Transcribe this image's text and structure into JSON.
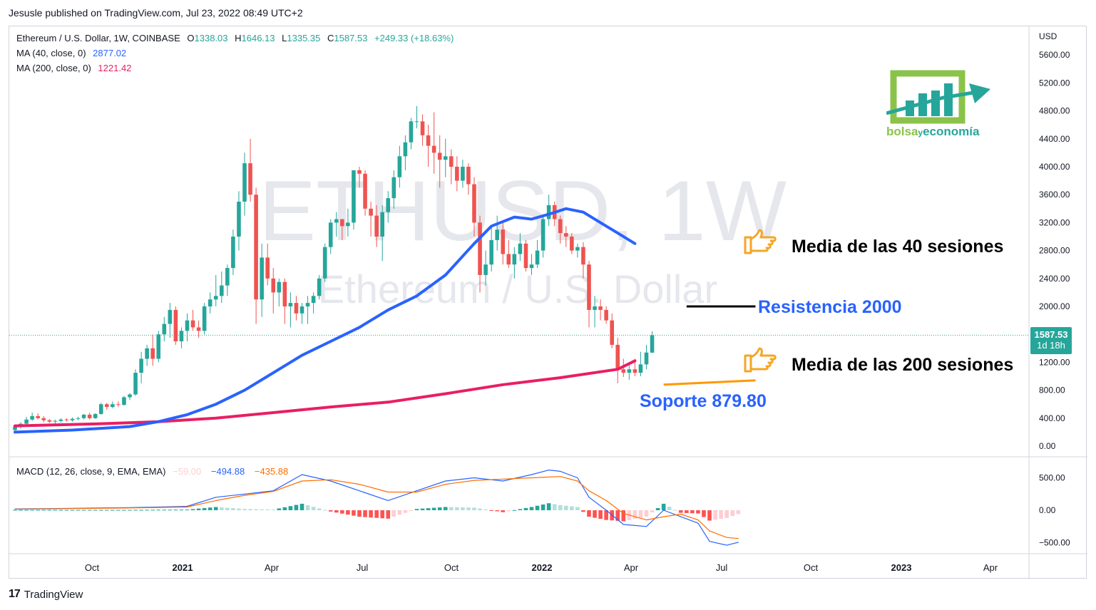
{
  "publisher": "Jesusle published on TradingView.com, Jul 23, 2022 08:49 UTC+2",
  "legend": {
    "symbol": "Ethereum / U.S. Dollar, 1W, COINBASE",
    "o_label": "O",
    "o": "1338.03",
    "h_label": "H",
    "h": "1646.13",
    "l_label": "L",
    "l": "1335.35",
    "c_label": "C",
    "c": "1587.53",
    "change": "+249.33 (+18.63%)",
    "ma40_label": "MA (40, close, 0)",
    "ma40_value": "2877.02",
    "ma200_label": "MA (200, close, 0)",
    "ma200_value": "1221.42"
  },
  "watermark": {
    "symbol": "ETHUSD, 1W",
    "name": "Ethereum / U.S. Dollar"
  },
  "price_axis": {
    "currency": "USD",
    "ticks": [
      "5600.00",
      "5200.00",
      "4800.00",
      "4400.00",
      "4000.00",
      "3600.00",
      "3200.00",
      "2800.00",
      "2400.00",
      "2000.00",
      "1600.00",
      "1200.00",
      "800.00",
      "400.00",
      "0.00"
    ]
  },
  "price_label": {
    "value": "1587.53",
    "countdown": "1d 18h"
  },
  "macd": {
    "label": "MACD (12, 26, close, 9, EMA, EMA)",
    "hist": "−59.00",
    "macd": "−494.88",
    "signal": "−435.88",
    "ticks": [
      "500.00",
      "0.00",
      "−500.00"
    ]
  },
  "time_axis": [
    "Oct",
    "2021",
    "Apr",
    "Jul",
    "Oct",
    "2022",
    "Apr",
    "Jul",
    "Oct",
    "2023",
    "Apr"
  ],
  "annotations": {
    "ma40": "Media de las 40 sesiones",
    "resistance": "Resistencia 2000",
    "ma200": "Media de las 200 sesiones",
    "support": "Soporte 879.80"
  },
  "brand": {
    "part1": "bolsa",
    "part2": "y",
    "part3": "economía"
  },
  "footer": {
    "logo_mark": "17",
    "logo_text": "TradingView"
  },
  "colors": {
    "up": "#26a69a",
    "down": "#ef5350",
    "ma40": "#2962ff",
    "ma200": "#e91e63",
    "macd_line": "#2962ff",
    "signal_line": "#ff6d00",
    "annot_blue": "#2962ff",
    "support_line": "#ff9800",
    "resistance_line": "#000000",
    "brand_green": "#8bc34a",
    "brand_teal": "#26a69a"
  },
  "chart_data": {
    "type": "candlestick",
    "title": "Ethereum / U.S. Dollar, 1W, COINBASE",
    "ylabel": "USD",
    "ylim": [
      0,
      5800
    ],
    "x_start": "2020-07-27",
    "x_step_weeks": 1,
    "candles": [
      [
        230,
        300,
        220,
        280
      ],
      [
        280,
        340,
        250,
        320
      ],
      [
        320,
        420,
        300,
        380
      ],
      [
        380,
        480,
        360,
        430
      ],
      [
        430,
        470,
        380,
        400
      ],
      [
        400,
        430,
        340,
        370
      ],
      [
        370,
        390,
        330,
        350
      ],
      [
        350,
        380,
        320,
        360
      ],
      [
        360,
        400,
        340,
        380
      ],
      [
        380,
        400,
        350,
        370
      ],
      [
        370,
        410,
        350,
        390
      ],
      [
        390,
        420,
        370,
        400
      ],
      [
        400,
        460,
        380,
        450
      ],
      [
        450,
        480,
        380,
        400
      ],
      [
        400,
        470,
        390,
        460
      ],
      [
        460,
        620,
        450,
        600
      ],
      [
        600,
        620,
        520,
        560
      ],
      [
        560,
        640,
        540,
        600
      ],
      [
        600,
        640,
        560,
        590
      ],
      [
        590,
        720,
        580,
        700
      ],
      [
        700,
        760,
        660,
        740
      ],
      [
        740,
        1100,
        720,
        1050
      ],
      [
        1050,
        1350,
        900,
        1250
      ],
      [
        1250,
        1450,
        1150,
        1400
      ],
      [
        1400,
        1600,
        1150,
        1250
      ],
      [
        1250,
        1650,
        1200,
        1600
      ],
      [
        1600,
        1850,
        1500,
        1750
      ],
      [
        1750,
        2050,
        1550,
        1950
      ],
      [
        1950,
        2000,
        1450,
        1500
      ],
      [
        1500,
        1700,
        1400,
        1650
      ],
      [
        1650,
        1900,
        1500,
        1800
      ],
      [
        1800,
        1950,
        1650,
        1700
      ],
      [
        1700,
        1800,
        1550,
        1650
      ],
      [
        1650,
        2050,
        1600,
        2000
      ],
      [
        2000,
        2200,
        1900,
        2100
      ],
      [
        2100,
        2450,
        2000,
        2150
      ],
      [
        2150,
        2500,
        2050,
        2300
      ],
      [
        2300,
        2600,
        2150,
        2550
      ],
      [
        2550,
        3100,
        2450,
        3000
      ],
      [
        3000,
        3650,
        2800,
        3500
      ],
      [
        3500,
        4200,
        3300,
        4050
      ],
      [
        4050,
        4400,
        3500,
        3600
      ],
      [
        3600,
        3700,
        1750,
        2100
      ],
      [
        2100,
        2900,
        1850,
        2700
      ],
      [
        2700,
        2900,
        2300,
        2400
      ],
      [
        2400,
        2550,
        1900,
        2200
      ],
      [
        2200,
        2400,
        2000,
        2350
      ],
      [
        2350,
        2400,
        1750,
        2000
      ],
      [
        2000,
        2200,
        1700,
        2050
      ],
      [
        2050,
        2150,
        1800,
        1900
      ],
      [
        1900,
        2050,
        1750,
        2000
      ],
      [
        2000,
        2150,
        1750,
        2050
      ],
      [
        2050,
        2200,
        1900,
        2150
      ],
      [
        2150,
        2450,
        2100,
        2400
      ],
      [
        2400,
        2900,
        2350,
        2850
      ],
      [
        2850,
        3250,
        2750,
        3200
      ],
      [
        3200,
        3350,
        3000,
        3250
      ],
      [
        3250,
        3250,
        2950,
        3150
      ],
      [
        3150,
        3400,
        3000,
        3200
      ],
      [
        3200,
        3900,
        3100,
        3950
      ],
      [
        3950,
        4000,
        3700,
        3900
      ],
      [
        3900,
        3950,
        3300,
        3400
      ],
      [
        3400,
        3500,
        3000,
        3300
      ],
      [
        3300,
        3450,
        2850,
        3000
      ],
      [
        3000,
        3450,
        2650,
        3350
      ],
      [
        3350,
        3650,
        3200,
        3550
      ],
      [
        3550,
        3950,
        3400,
        3850
      ],
      [
        3850,
        4300,
        3700,
        4150
      ],
      [
        4150,
        4450,
        3950,
        4350
      ],
      [
        4350,
        4700,
        4250,
        4650
      ],
      [
        4650,
        4870,
        4550,
        4650
      ],
      [
        4650,
        4750,
        4300,
        4450
      ],
      [
        4450,
        4600,
        4000,
        4300
      ],
      [
        4300,
        4780,
        3900,
        4200
      ],
      [
        4200,
        4450,
        3700,
        4100
      ],
      [
        4100,
        4400,
        3850,
        4150
      ],
      [
        4150,
        4250,
        3750,
        4000
      ],
      [
        4000,
        4150,
        3650,
        3800
      ],
      [
        3800,
        4100,
        3700,
        4000
      ],
      [
        4000,
        4050,
        3600,
        3750
      ],
      [
        3750,
        3850,
        3000,
        3200
      ],
      [
        3200,
        3300,
        2200,
        2450
      ],
      [
        2450,
        2800,
        2300,
        2600
      ],
      [
        2600,
        3150,
        2500,
        2950
      ],
      [
        2950,
        3300,
        2800,
        3100
      ],
      [
        3100,
        3200,
        2600,
        2750
      ],
      [
        2750,
        2950,
        2550,
        2600
      ],
      [
        2600,
        2850,
        2400,
        2750
      ],
      [
        2750,
        3050,
        2650,
        2900
      ],
      [
        2900,
        2950,
        2500,
        2550
      ],
      [
        2550,
        2750,
        2450,
        2600
      ],
      [
        2600,
        2950,
        2550,
        2800
      ],
      [
        2800,
        3300,
        2700,
        3250
      ],
      [
        3250,
        3600,
        3150,
        3450
      ],
      [
        3450,
        3500,
        3150,
        3250
      ],
      [
        3250,
        3300,
        2900,
        3050
      ],
      [
        3050,
        3150,
        2850,
        3000
      ],
      [
        3000,
        3050,
        2750,
        2800
      ],
      [
        2800,
        2900,
        2700,
        2850
      ],
      [
        2850,
        2920,
        2400,
        2600
      ],
      [
        2600,
        2650,
        1700,
        1950
      ],
      [
        1950,
        2150,
        1700,
        2000
      ],
      [
        2000,
        2100,
        1800,
        1950
      ],
      [
        1950,
        2000,
        1750,
        1800
      ],
      [
        1800,
        1900,
        1400,
        1450
      ],
      [
        1450,
        1550,
        900,
        1100
      ],
      [
        1100,
        1250,
        990,
        1050
      ],
      [
        1050,
        1200,
        950,
        1100
      ],
      [
        1100,
        1250,
        1000,
        1050
      ],
      [
        1050,
        1350,
        1000,
        1170
      ],
      [
        1170,
        1450,
        1100,
        1340
      ],
      [
        1338.03,
        1646.13,
        1335.35,
        1587.53
      ]
    ],
    "ma40": [
      [
        0,
        200
      ],
      [
        10,
        230
      ],
      [
        20,
        280
      ],
      [
        25,
        350
      ],
      [
        30,
        450
      ],
      [
        35,
        600
      ],
      [
        40,
        800
      ],
      [
        45,
        1050
      ],
      [
        50,
        1300
      ],
      [
        55,
        1500
      ],
      [
        60,
        1700
      ],
      [
        65,
        1950
      ],
      [
        70,
        2150
      ],
      [
        75,
        2450
      ],
      [
        80,
        2900
      ],
      [
        83,
        3150
      ],
      [
        87,
        3280
      ],
      [
        90,
        3250
      ],
      [
        93,
        3320
      ],
      [
        96,
        3400
      ],
      [
        99,
        3350
      ],
      [
        102,
        3200
      ],
      [
        105,
        3050
      ],
      [
        108,
        2900
      ]
    ],
    "ma200": [
      [
        0,
        290
      ],
      [
        15,
        320
      ],
      [
        25,
        350
      ],
      [
        35,
        400
      ],
      [
        45,
        480
      ],
      [
        55,
        560
      ],
      [
        65,
        630
      ],
      [
        75,
        750
      ],
      [
        85,
        880
      ],
      [
        95,
        980
      ],
      [
        105,
        1100
      ],
      [
        108,
        1221.42
      ]
    ],
    "macd_series": {
      "range": [
        -580,
        720
      ],
      "macd": [
        [
          0,
          20
        ],
        [
          10,
          30
        ],
        [
          20,
          40
        ],
        [
          30,
          60
        ],
        [
          35,
          200
        ],
        [
          40,
          250
        ],
        [
          45,
          300
        ],
        [
          50,
          550
        ],
        [
          55,
          450
        ],
        [
          60,
          300
        ],
        [
          65,
          150
        ],
        [
          70,
          300
        ],
        [
          75,
          450
        ],
        [
          80,
          500
        ],
        [
          85,
          450
        ],
        [
          90,
          550
        ],
        [
          93,
          620
        ],
        [
          95,
          600
        ],
        [
          98,
          500
        ],
        [
          100,
          200
        ],
        [
          103,
          0
        ],
        [
          106,
          -220
        ],
        [
          110,
          -250
        ],
        [
          113,
          0
        ],
        [
          116,
          -100
        ],
        [
          119,
          -200
        ],
        [
          121,
          -480
        ],
        [
          124,
          -540
        ],
        [
          126,
          -494.88
        ]
      ],
      "signal": [
        [
          0,
          15
        ],
        [
          10,
          25
        ],
        [
          20,
          35
        ],
        [
          30,
          50
        ],
        [
          35,
          150
        ],
        [
          40,
          230
        ],
        [
          45,
          290
        ],
        [
          50,
          450
        ],
        [
          55,
          470
        ],
        [
          60,
          400
        ],
        [
          65,
          280
        ],
        [
          70,
          280
        ],
        [
          75,
          400
        ],
        [
          80,
          460
        ],
        [
          85,
          480
        ],
        [
          90,
          500
        ],
        [
          95,
          520
        ],
        [
          98,
          450
        ],
        [
          100,
          300
        ],
        [
          103,
          150
        ],
        [
          106,
          -50
        ],
        [
          110,
          -150
        ],
        [
          113,
          -100
        ],
        [
          116,
          -60
        ],
        [
          119,
          -150
        ],
        [
          121,
          -320
        ],
        [
          124,
          -420
        ],
        [
          126,
          -435.88
        ]
      ]
    },
    "resistance": 2000,
    "support": 879.8
  }
}
